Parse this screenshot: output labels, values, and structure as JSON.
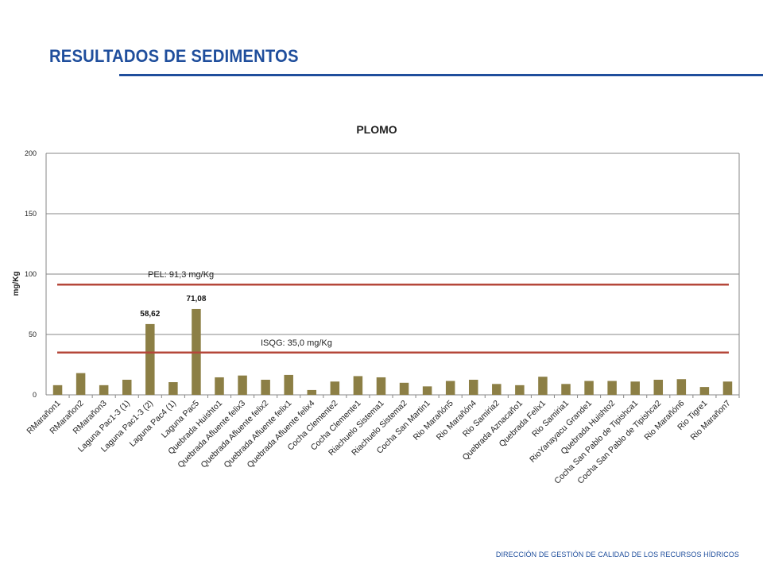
{
  "header": {
    "title": "RESULTADOS DE SEDIMENTOS"
  },
  "footer": {
    "text": "DIRECCIÓN DE GESTIÓN DE CALIDAD DE LOS RECURSOS HÍDRICOS"
  },
  "colors": {
    "bar": "#8c7f45",
    "threshold": "#b5473a",
    "title": "#1f4e9c",
    "grid": "#878787"
  },
  "chart_data": {
    "type": "bar",
    "title": "PLOMO",
    "ylabel": "mg/Kg",
    "xlabel": "",
    "ylim": [
      0,
      200
    ],
    "yticks": [
      0,
      50,
      100,
      150,
      200
    ],
    "grid": true,
    "categories": [
      "RMarañon1",
      "RMarañon2",
      "RMarañon3",
      "Laguna Pac1-3 (1)",
      "Laguna Pac1-3 (2)",
      "Laguna Pac4 (1)",
      "Laguna Pac5",
      "Quebrada Huishto1",
      "Quebrada Afluente felix3",
      "Quebrada Afluente felix2",
      "Quebrada Afluente felix1",
      "Quebrada Afluente felix4",
      "Cocha Clemente2",
      "Cocha Clemente1",
      "Riachuelo Sistema1",
      "Riachuelo Sistema2",
      "Cocha San Martin1",
      "Rio Marañón5",
      "Rio Marañón4",
      "Rio Samiria2",
      "Quebrada Aznacaño1",
      "Quebrada Felix1",
      "Rio Samiria1",
      "RioYanayacu Grande1",
      "Quebrada Huishto2",
      "Cocha San Pablo de Tipishca1",
      "Cocha San Pablo de Tipishca2",
      "Rio Marañón6",
      "Rio Tigre1",
      "Rio Marañon7"
    ],
    "values": [
      8,
      18,
      8,
      12.5,
      58.62,
      10.5,
      71.08,
      14.5,
      16,
      12.5,
      16.5,
      4,
      11,
      15.5,
      14.5,
      10,
      7,
      11.5,
      12.5,
      9,
      8,
      15,
      9,
      11.5,
      11.5,
      11,
      12.5,
      13,
      6.5,
      11
    ],
    "data_labels": [
      {
        "index": 4,
        "text": "58,62"
      },
      {
        "index": 6,
        "text": "71,08"
      }
    ],
    "reference_lines": [
      {
        "value": 91.3,
        "label": "PEL: 91,3 mg/Kg"
      },
      {
        "value": 35.0,
        "label": "ISQG: 35,0 mg/Kg"
      }
    ]
  }
}
